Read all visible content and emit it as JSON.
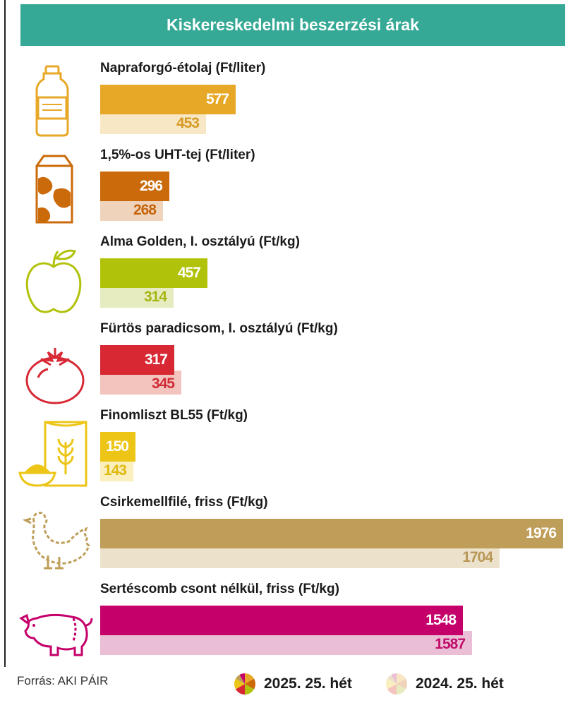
{
  "title": "Kiskereskedelmi beszerzési árak",
  "source": "Forrás: AKI PÁIR",
  "legend": {
    "current": "2025. 25. hét",
    "previous": "2024. 25. hét"
  },
  "chart_data": {
    "type": "bar",
    "orientation": "horizontal",
    "title": "Kiskereskedelmi beszerzési árak",
    "series": [
      {
        "name": "2025. 25. hét",
        "values": [
          577,
          296,
          457,
          317,
          150,
          1976,
          1548
        ]
      },
      {
        "name": "2024. 25. hét",
        "values": [
          453,
          268,
          314,
          345,
          143,
          1704,
          1587
        ]
      }
    ],
    "categories": [
      "Napraforgó-étolaj (Ft/liter)",
      "1,5%-os UHT-tej (Ft/liter)",
      "Alma Golden, I. osztályú (Ft/kg)",
      "Fürtös paradicsom, I. osztályú (Ft/kg)",
      "Finomliszt BL55 (Ft/kg)",
      "Csirkemellfilé, friss (Ft/kg)",
      "Sertéscomb csont nélkül, friss (Ft/kg)"
    ],
    "items": [
      {
        "label": "Napraforgó-étolaj (Ft/liter)",
        "current": 577,
        "previous": 453,
        "icon": "oil-bottle-icon",
        "color": "#e7a828",
        "color_light": "#f8e7c4",
        "text_color_prev": "#d79a22"
      },
      {
        "label": "1,5%-os UHT-tej (Ft/liter)",
        "current": 296,
        "previous": 268,
        "icon": "milk-carton-icon",
        "color": "#cb6a0a",
        "color_light": "#f0d3bb",
        "text_color_prev": "#c5650c"
      },
      {
        "label": "Alma Golden, I. osztályú (Ft/kg)",
        "current": 457,
        "previous": 314,
        "icon": "apple-icon",
        "color": "#b1c20b",
        "color_light": "#e6ecbf",
        "text_color_prev": "#a5b512"
      },
      {
        "label": "Fürtös paradicsom, I. osztályú (Ft/kg)",
        "current": 317,
        "previous": 345,
        "icon": "tomato-icon",
        "color": "#d72834",
        "color_light": "#f3c4bd",
        "text_color_prev": "#d02c37"
      },
      {
        "label": "Finomliszt BL55 (Ft/kg)",
        "current": 150,
        "previous": 143,
        "icon": "flour-icon",
        "color": "#ecc516",
        "color_light": "#faefbd",
        "text_color_prev": "#e0b90f"
      },
      {
        "label": "Csirkemellfilé, friss (Ft/kg)",
        "current": 1976,
        "previous": 1704,
        "icon": "chicken-icon",
        "color": "#be9e58",
        "color_light": "#ece1cb",
        "text_color_prev": "#b89755"
      },
      {
        "label": "Sertéscomb csont nélkül, friss (Ft/kg)",
        "current": 1548,
        "previous": 1587,
        "icon": "pig-icon",
        "color": "#c5006a",
        "color_light": "#eabfd5",
        "text_color_prev": "#c20d6b"
      }
    ]
  }
}
